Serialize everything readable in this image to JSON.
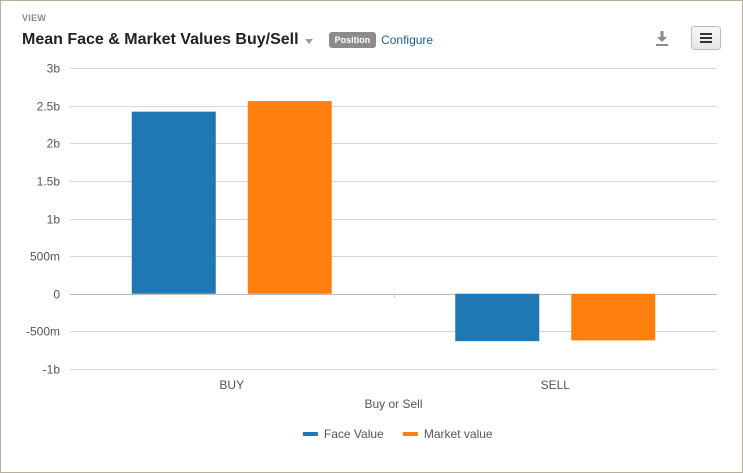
{
  "header": {
    "view_label": "VIEW",
    "title": "Mean Face & Market Values Buy/Sell",
    "badge": "Position",
    "configure_label": "Configure",
    "download_icon": "download-icon",
    "menu_icon": "hamburger-menu-icon"
  },
  "chart_data": {
    "type": "bar",
    "categories": [
      "BUY",
      "SELL"
    ],
    "xlabel": "Buy or Sell",
    "ylabel": "",
    "ylim": [
      -1000000000,
      3000000000
    ],
    "yticks": [
      {
        "value": 3000000000,
        "label": "3b"
      },
      {
        "value": 2500000000,
        "label": "2.5b"
      },
      {
        "value": 2000000000,
        "label": "2b"
      },
      {
        "value": 1500000000,
        "label": "1.5b"
      },
      {
        "value": 1000000000,
        "label": "1b"
      },
      {
        "value": 500000000,
        "label": "500m"
      },
      {
        "value": 0,
        "label": "0"
      },
      {
        "value": -500000000,
        "label": "-500m"
      },
      {
        "value": -1000000000,
        "label": "-1b"
      }
    ],
    "series": [
      {
        "name": "Face Value",
        "color": "#1f77b4",
        "values": [
          2420000000,
          -630000000
        ]
      },
      {
        "name": "Market value",
        "color": "#ff7f0e",
        "values": [
          2560000000,
          -620000000
        ]
      }
    ],
    "grid": true,
    "legend": "bottom-center"
  }
}
